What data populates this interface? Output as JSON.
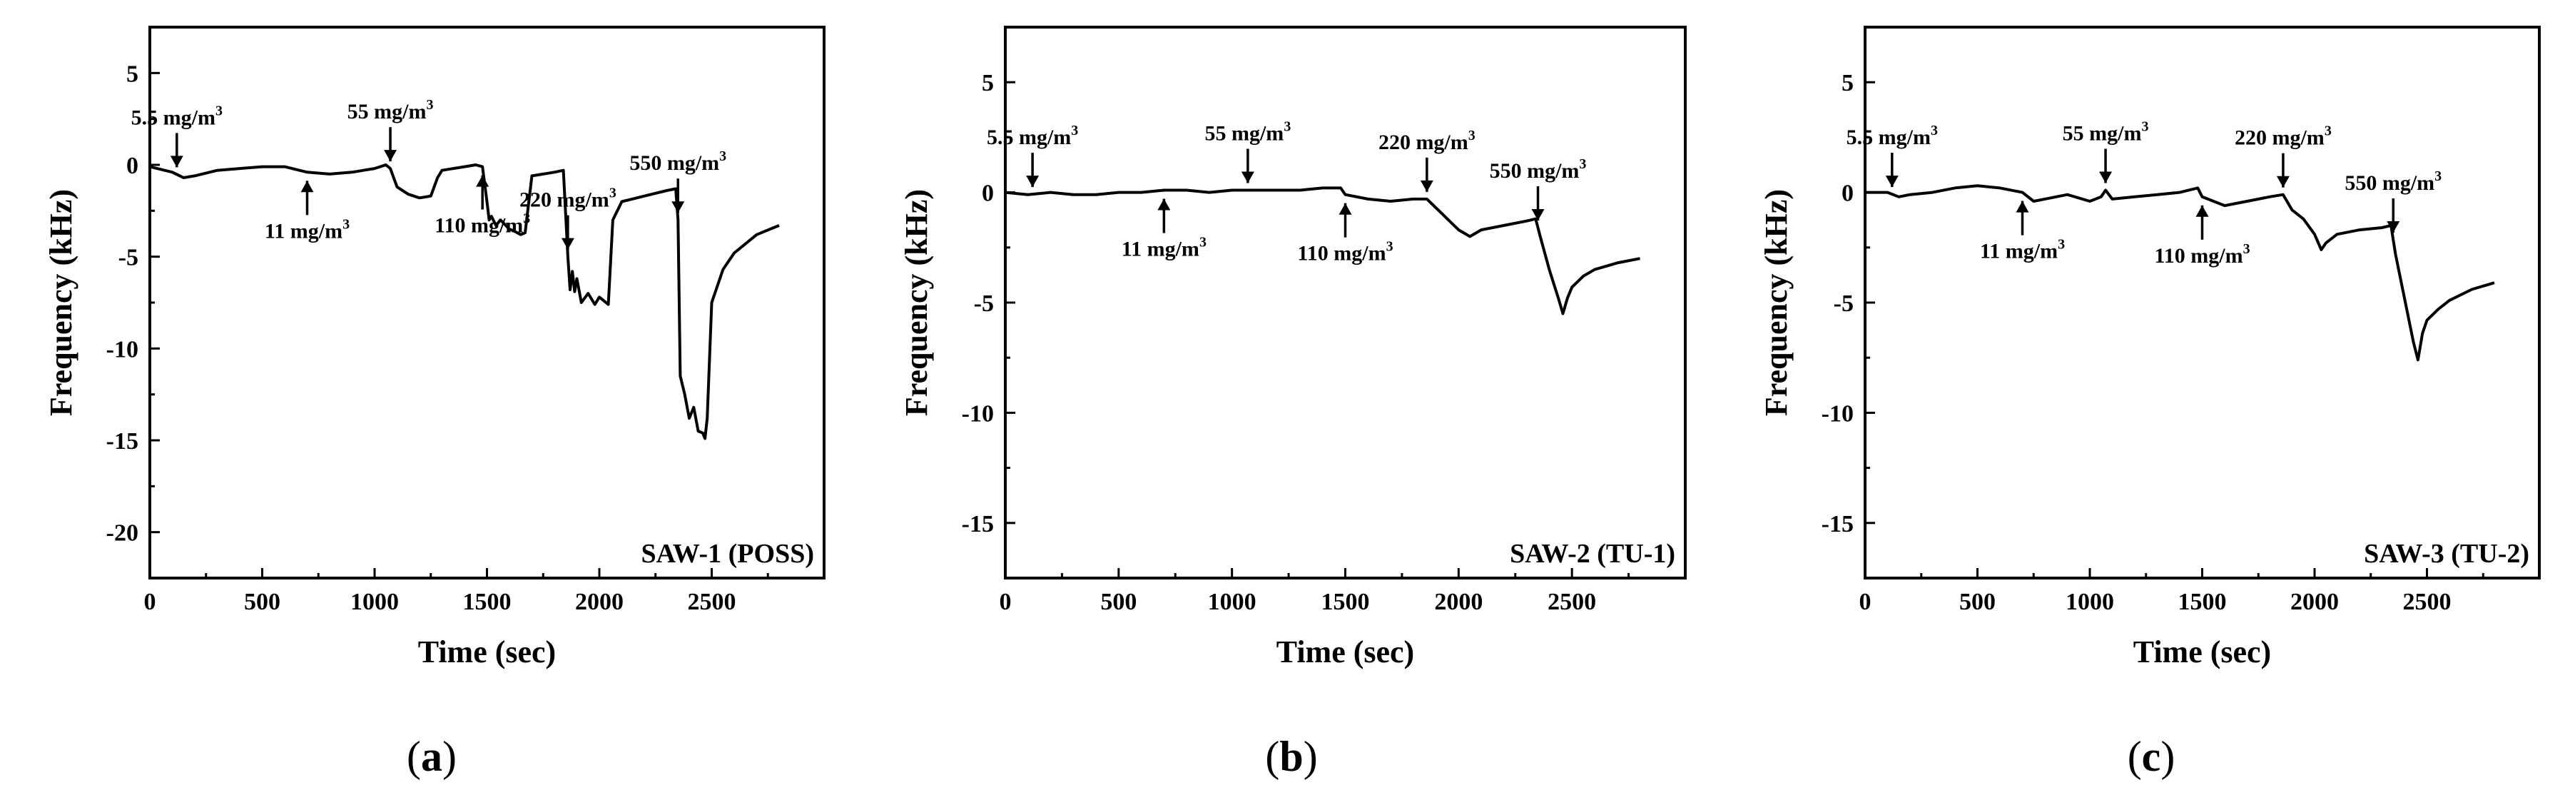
{
  "chart_data": [
    {
      "type": "line",
      "panel_letter": "a",
      "series_label": "SAW-1 (POSS)",
      "xlabel": "Time (sec)",
      "ylabel": "Frequency (kHz)",
      "xlim": [
        0,
        3000
      ],
      "ylim": [
        -22.5,
        7.5
      ],
      "xticks": [
        0,
        500,
        1000,
        1500,
        2000,
        2500
      ],
      "yticks": [
        5,
        0,
        -5,
        -10,
        -15,
        -20
      ],
      "x": [
        0,
        100,
        150,
        200,
        300,
        400,
        500,
        600,
        700,
        800,
        900,
        1000,
        1050,
        1070,
        1100,
        1150,
        1200,
        1250,
        1280,
        1300,
        1400,
        1450,
        1480,
        1500,
        1510,
        1520,
        1540,
        1560,
        1600,
        1620,
        1650,
        1670,
        1700,
        1750,
        1800,
        1840,
        1860,
        1870,
        1880,
        1890,
        1900,
        1920,
        1950,
        1980,
        2000,
        2040,
        2060,
        2100,
        2200,
        2300,
        2340,
        2350,
        2360,
        2380,
        2400,
        2420,
        2440,
        2460,
        2470,
        2480,
        2500,
        2550,
        2600,
        2700,
        2800
      ],
      "y": [
        -0.1,
        -0.4,
        -0.7,
        -0.6,
        -0.3,
        -0.2,
        -0.1,
        -0.1,
        -0.4,
        -0.5,
        -0.4,
        -0.2,
        0.0,
        -0.2,
        -1.2,
        -1.6,
        -1.8,
        -1.7,
        -0.7,
        -0.3,
        -0.1,
        0.0,
        -0.1,
        -2.0,
        -3.0,
        -2.8,
        -3.3,
        -3.0,
        -3.5,
        -3.6,
        -3.8,
        -3.7,
        -0.6,
        -0.5,
        -0.4,
        -0.3,
        -5.0,
        -6.8,
        -5.8,
        -6.9,
        -6.2,
        -7.5,
        -7.0,
        -7.6,
        -7.2,
        -7.6,
        -3.0,
        -2.0,
        -1.7,
        -1.4,
        -1.3,
        -3.0,
        -11.5,
        -12.5,
        -13.8,
        -13.2,
        -14.5,
        -14.6,
        -14.9,
        -13.8,
        -7.5,
        -5.7,
        -4.8,
        -3.8,
        -3.3
      ],
      "annotations": [
        {
          "text": "5.5 mg/m",
          "x": 120,
          "dir": "down"
        },
        {
          "text": "11 mg/m",
          "x": 700,
          "dir": "up"
        },
        {
          "text": "55 mg/m",
          "x": 1070,
          "dir": "down"
        },
        {
          "text": "110 mg/m",
          "x": 1480,
          "dir": "up"
        },
        {
          "text": "220 mg/m",
          "x": 1860,
          "dir": "down"
        },
        {
          "text": "550 mg/m",
          "x": 2350,
          "dir": "down"
        }
      ]
    },
    {
      "type": "line",
      "panel_letter": "b",
      "series_label": "SAW-2 (TU-1)",
      "xlabel": "Time (sec)",
      "ylabel": "Frequency (kHz)",
      "xlim": [
        0,
        3000
      ],
      "ylim": [
        -17.5,
        7.5
      ],
      "xticks": [
        0,
        500,
        1000,
        1500,
        2000,
        2500
      ],
      "yticks": [
        5,
        0,
        -5,
        -10,
        -15
      ],
      "x": [
        0,
        100,
        200,
        300,
        400,
        500,
        600,
        700,
        800,
        900,
        1000,
        1100,
        1200,
        1300,
        1400,
        1480,
        1500,
        1600,
        1700,
        1800,
        1860,
        1900,
        1950,
        2000,
        2050,
        2100,
        2200,
        2300,
        2340,
        2360,
        2400,
        2440,
        2460,
        2480,
        2500,
        2550,
        2600,
        2700,
        2800
      ],
      "y": [
        0.0,
        -0.1,
        0.0,
        -0.1,
        -0.1,
        0.0,
        0.0,
        0.1,
        0.1,
        0.0,
        0.1,
        0.1,
        0.1,
        0.1,
        0.2,
        0.2,
        -0.1,
        -0.3,
        -0.4,
        -0.3,
        -0.3,
        -0.7,
        -1.2,
        -1.7,
        -2.0,
        -1.7,
        -1.5,
        -1.3,
        -1.2,
        -2.0,
        -3.5,
        -4.8,
        -5.5,
        -4.8,
        -4.3,
        -3.8,
        -3.5,
        -3.2,
        -3.0
      ],
      "annotations": [
        {
          "text": "5.5 mg/m",
          "x": 120,
          "dir": "down"
        },
        {
          "text": "11 mg/m",
          "x": 700,
          "dir": "up"
        },
        {
          "text": "55 mg/m",
          "x": 1070,
          "dir": "down"
        },
        {
          "text": "110 mg/m",
          "x": 1500,
          "dir": "up"
        },
        {
          "text": "220 mg/m",
          "x": 1860,
          "dir": "down"
        },
        {
          "text": "550 mg/m",
          "x": 2350,
          "dir": "down"
        }
      ]
    },
    {
      "type": "line",
      "panel_letter": "c",
      "series_label": "SAW-3 (TU-2)",
      "xlabel": "Time (sec)",
      "ylabel": "Frequency (kHz)",
      "xlim": [
        0,
        3000
      ],
      "ylim": [
        -17.5,
        7.5
      ],
      "xticks": [
        0,
        500,
        1000,
        1500,
        2000,
        2500
      ],
      "yticks": [
        5,
        0,
        -5,
        -10,
        -15
      ],
      "x": [
        0,
        100,
        150,
        200,
        300,
        400,
        500,
        600,
        700,
        750,
        800,
        900,
        1000,
        1050,
        1070,
        1100,
        1200,
        1300,
        1400,
        1480,
        1500,
        1600,
        1700,
        1800,
        1860,
        1900,
        1950,
        2000,
        2030,
        2050,
        2100,
        2200,
        2300,
        2340,
        2360,
        2400,
        2440,
        2460,
        2480,
        2500,
        2550,
        2600,
        2700,
        2800
      ],
      "y": [
        0.0,
        0.0,
        -0.2,
        -0.1,
        0.0,
        0.2,
        0.3,
        0.2,
        0.0,
        -0.4,
        -0.3,
        -0.1,
        -0.4,
        -0.2,
        0.1,
        -0.3,
        -0.2,
        -0.1,
        0.0,
        0.2,
        -0.2,
        -0.6,
        -0.4,
        -0.2,
        -0.1,
        -0.8,
        -1.2,
        -1.9,
        -2.6,
        -2.3,
        -1.9,
        -1.7,
        -1.6,
        -1.5,
        -2.8,
        -4.8,
        -6.8,
        -7.6,
        -6.4,
        -5.8,
        -5.3,
        -4.9,
        -4.4,
        -4.1
      ],
      "annotations": [
        {
          "text": "5.5 mg/m",
          "x": 120,
          "dir": "down"
        },
        {
          "text": "11 mg/m",
          "x": 700,
          "dir": "up"
        },
        {
          "text": "55 mg/m",
          "x": 1070,
          "dir": "down"
        },
        {
          "text": "110 mg/m",
          "x": 1500,
          "dir": "up"
        },
        {
          "text": "220 mg/m",
          "x": 1860,
          "dir": "down"
        },
        {
          "text": "550 mg/m",
          "x": 2350,
          "dir": "down"
        }
      ]
    }
  ],
  "superscript": "3"
}
